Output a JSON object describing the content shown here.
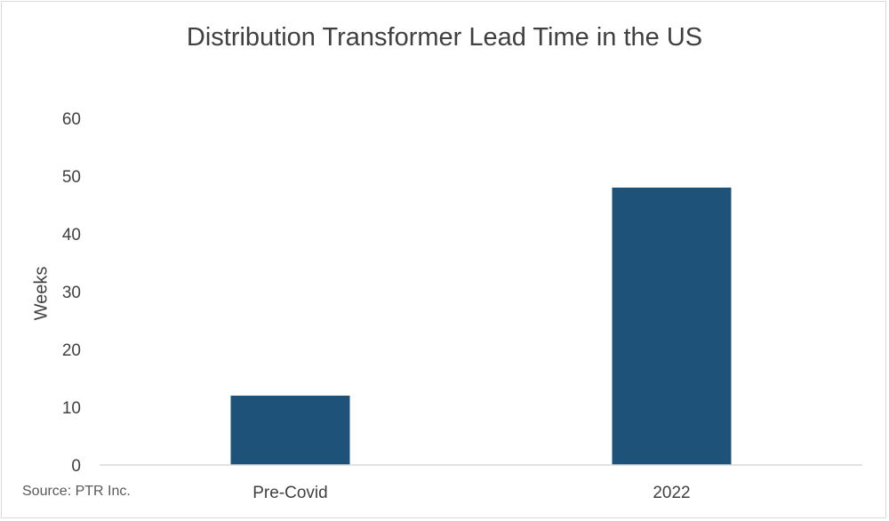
{
  "chart_data": {
    "type": "bar",
    "title": "Distribution Transformer Lead Time in the US",
    "xlabel": "",
    "ylabel": "Weeks",
    "categories": [
      "Pre-Covid",
      "2022"
    ],
    "values": [
      12,
      48
    ],
    "ylim": [
      0,
      60
    ],
    "yticks": [
      0,
      10,
      20,
      30,
      40,
      50,
      60
    ],
    "grid": false,
    "legend": "none",
    "bar_color": "#1f5278",
    "source": "Source: PTR Inc."
  }
}
